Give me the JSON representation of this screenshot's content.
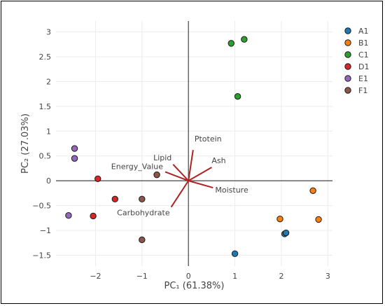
{
  "chart_data": {
    "type": "scatter",
    "title": "",
    "xlabel": "PC₁ (61.38%)",
    "ylabel": "PC₂ (27.03%)",
    "xlim": [
      -2.85,
      3.1
    ],
    "ylim": [
      -1.72,
      3.22
    ],
    "x_ticks": [
      -2,
      -1,
      0,
      1,
      2,
      3
    ],
    "y_ticks": [
      -1.5,
      -1,
      -0.5,
      0,
      0.5,
      1,
      1.5,
      2,
      2.5,
      3
    ],
    "grid": true,
    "legend_position": "right",
    "series": [
      {
        "name": "A1",
        "color": "#1f77b4",
        "points": [
          [
            2.07,
            -1.07
          ],
          [
            2.1,
            -1.05
          ],
          [
            1.0,
            -1.47
          ]
        ]
      },
      {
        "name": "B1",
        "color": "#ff7f0e",
        "points": [
          [
            2.68,
            -0.2
          ],
          [
            1.97,
            -0.77
          ],
          [
            2.8,
            -0.78
          ]
        ]
      },
      {
        "name": "C1",
        "color": "#2ca02c",
        "points": [
          [
            0.92,
            2.77
          ],
          [
            1.2,
            2.85
          ],
          [
            1.06,
            1.7
          ]
        ]
      },
      {
        "name": "D1",
        "color": "#d62728",
        "points": [
          [
            -1.95,
            0.04
          ],
          [
            -1.58,
            -0.37
          ],
          [
            -2.05,
            -0.71
          ]
        ]
      },
      {
        "name": "E1",
        "color": "#9467bd",
        "points": [
          [
            -2.45,
            0.65
          ],
          [
            -2.45,
            0.45
          ],
          [
            -2.58,
            -0.7
          ]
        ]
      },
      {
        "name": "F1",
        "color": "#8c564b",
        "points": [
          [
            -0.68,
            0.12
          ],
          [
            -1.0,
            -0.37
          ],
          [
            -1.0,
            -1.19
          ]
        ]
      }
    ],
    "loadings": [
      {
        "label": "Ptotein",
        "x": 0.1,
        "y": 0.62
      },
      {
        "label": "Ash",
        "x": 0.5,
        "y": 0.27
      },
      {
        "label": "Moisture",
        "x": 0.53,
        "y": -0.14
      },
      {
        "label": "Lipid",
        "x": -0.33,
        "y": 0.33
      },
      {
        "label": "Energy_Value",
        "x": -0.5,
        "y": 0.18
      },
      {
        "label": "Carbohydrate",
        "x": -0.37,
        "y": -0.53
      }
    ],
    "loading_color": "#b22222"
  }
}
